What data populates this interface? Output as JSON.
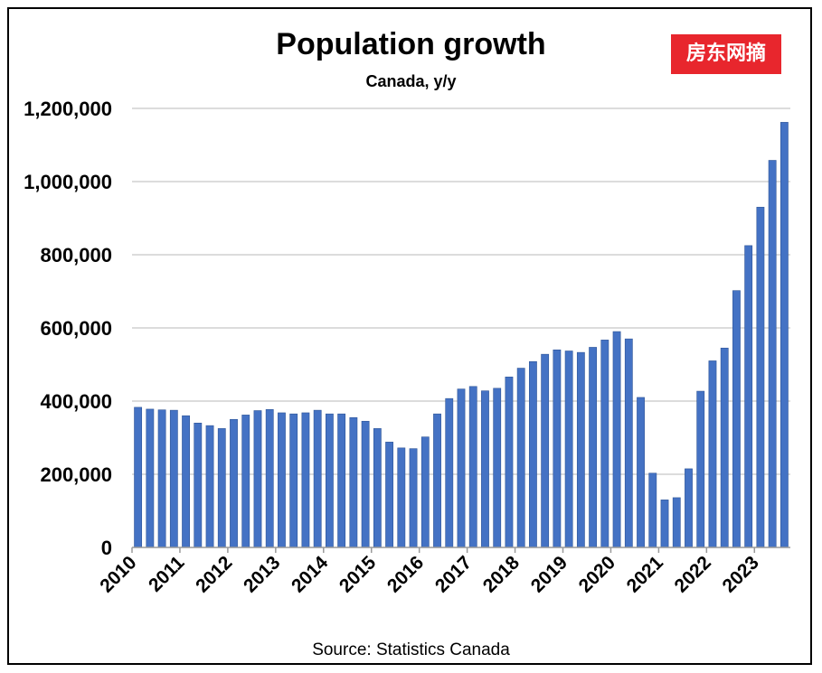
{
  "colors": {
    "bar": "#4472c4",
    "bar_edge": "#2f5597",
    "grid": "#c8c8c8",
    "badge_bg": "#e8262d"
  },
  "badge": {
    "text": "房东网摘"
  },
  "source": "Source: Statistics Canada",
  "chart_data": {
    "type": "bar",
    "title": "Population growth",
    "subtitle": "Canada, y/y",
    "xlabel": "",
    "ylabel": "",
    "ylim": [
      0,
      1200000
    ],
    "yticks": [
      0,
      200000,
      400000,
      600000,
      800000,
      1000000,
      1200000
    ],
    "ytick_labels": [
      "0",
      "200,000",
      "400,000",
      "600,000",
      "800,000",
      "1,000,000",
      "1,200,000"
    ],
    "grid": true,
    "xtick_labels": [
      "2010",
      "2011",
      "2012",
      "2013",
      "2014",
      "2015",
      "2016",
      "2017",
      "2018",
      "2019",
      "2020",
      "2021",
      "2022",
      "2023"
    ],
    "bars_per_year": 4,
    "values": [
      383000,
      378000,
      376000,
      375000,
      360000,
      340000,
      333000,
      325000,
      350000,
      362000,
      374000,
      377000,
      368000,
      365000,
      368000,
      375000,
      365000,
      365000,
      355000,
      345000,
      325000,
      288000,
      272000,
      270000,
      302000,
      365000,
      407000,
      433000,
      440000,
      428000,
      435000,
      466000,
      490000,
      508000,
      528000,
      540000,
      537000,
      533000,
      547000,
      567000,
      590000,
      570000,
      410000,
      203000,
      130000,
      136000,
      215000,
      427000,
      510000,
      545000,
      702000,
      825000,
      930000,
      1058000,
      1162000
    ]
  }
}
